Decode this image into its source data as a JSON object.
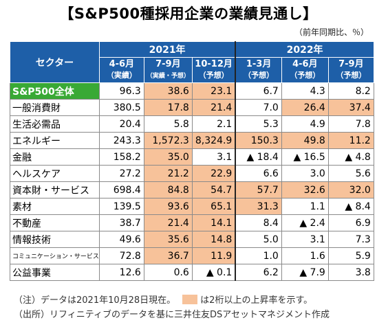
{
  "title": "【S&P500種採用企業の業績見通し】",
  "unit": "（前年同期比、％）",
  "colors": {
    "header": "#1e5fa8",
    "highlight": "#f7c29a",
    "total_label": "#39a935"
  },
  "chart_data": {
    "type": "table",
    "sector_header": "セクター",
    "years": [
      {
        "label": "2021年",
        "span": 3
      },
      {
        "label": "2022年",
        "span": 3
      }
    ],
    "quarters": [
      {
        "label": "4-6月",
        "sub": "（実績）"
      },
      {
        "label": "7-9月",
        "sub": "（実績・予想）"
      },
      {
        "label": "10-12月",
        "sub": "（予想）"
      },
      {
        "label": "1-3月",
        "sub": "（予想）"
      },
      {
        "label": "4-6月",
        "sub": "（予想）"
      },
      {
        "label": "7-9月",
        "sub": "（予想）"
      }
    ],
    "rows": [
      {
        "sector": "S&P500全体",
        "values": [
          "96.3",
          "38.6",
          "23.1",
          "6.7",
          "4.3",
          "8.2"
        ],
        "highlight": [
          false,
          true,
          true,
          false,
          false,
          false
        ]
      },
      {
        "sector": "一般消費財",
        "values": [
          "380.5",
          "17.8",
          "21.4",
          "7.0",
          "26.4",
          "37.4"
        ],
        "highlight": [
          false,
          true,
          true,
          false,
          true,
          true
        ]
      },
      {
        "sector": "生活必需品",
        "values": [
          "20.4",
          "5.8",
          "2.1",
          "5.3",
          "4.9",
          "7.8"
        ],
        "highlight": [
          false,
          false,
          false,
          false,
          false,
          false
        ]
      },
      {
        "sector": "エネルギー",
        "values": [
          "243.3",
          "1,572.3",
          "8,324.9",
          "150.3",
          "49.8",
          "11.2"
        ],
        "highlight": [
          false,
          true,
          true,
          true,
          true,
          true
        ]
      },
      {
        "sector": "金融",
        "values": [
          "158.2",
          "35.0",
          "3.1",
          "▲ 18.4",
          "▲ 16.5",
          "▲ 4.8"
        ],
        "highlight": [
          false,
          true,
          false,
          false,
          false,
          false
        ]
      },
      {
        "sector": "ヘルスケア",
        "values": [
          "27.2",
          "21.2",
          "22.9",
          "6.6",
          "3.0",
          "5.6"
        ],
        "highlight": [
          false,
          true,
          true,
          false,
          false,
          false
        ]
      },
      {
        "sector": "資本財・サービス",
        "values": [
          "698.4",
          "84.8",
          "54.7",
          "57.7",
          "32.6",
          "32.0"
        ],
        "highlight": [
          false,
          true,
          true,
          true,
          true,
          true
        ]
      },
      {
        "sector": "素材",
        "values": [
          "139.5",
          "93.6",
          "65.1",
          "31.3",
          "1.1",
          "▲ 8.4"
        ],
        "highlight": [
          false,
          true,
          true,
          true,
          false,
          false
        ]
      },
      {
        "sector": "不動産",
        "values": [
          "38.7",
          "21.4",
          "14.1",
          "8.4",
          "▲ 2.4",
          "6.9"
        ],
        "highlight": [
          false,
          true,
          true,
          false,
          false,
          false
        ]
      },
      {
        "sector": "情報技術",
        "values": [
          "49.6",
          "35.6",
          "14.8",
          "5.0",
          "3.1",
          "7.3"
        ],
        "highlight": [
          false,
          true,
          true,
          false,
          false,
          false
        ]
      },
      {
        "sector": "コミュニケーション・サービス",
        "values": [
          "72.8",
          "36.7",
          "11.9",
          "1.0",
          "1.6",
          "5.9"
        ],
        "highlight": [
          false,
          true,
          true,
          false,
          false,
          false
        ]
      },
      {
        "sector": "公益事業",
        "values": [
          "12.6",
          "0.6",
          "▲ 0.1",
          "6.2",
          "▲ 7.9",
          "3.8"
        ],
        "highlight": [
          false,
          false,
          false,
          false,
          false,
          false
        ]
      }
    ]
  },
  "notes": {
    "note1_prefix": "（注）データは2021年10月28日現在。",
    "note1_suffix": "は2桁以上の上昇率を示す。",
    "note2": "（出所）リフィニティブのデータを基に三井住友DSアセットマネジメント作成"
  }
}
